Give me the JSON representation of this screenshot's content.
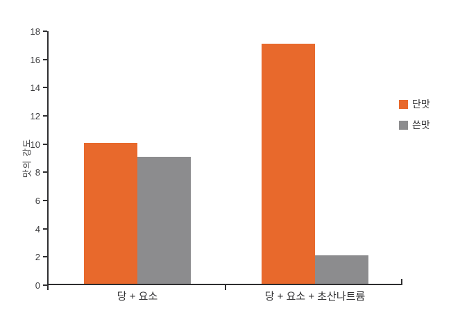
{
  "chart_data": {
    "type": "bar",
    "title": "",
    "categories": [
      "당 + 요소",
      "당 + 요소 + 초산나트륨"
    ],
    "series": [
      {
        "name": "단맛",
        "color": "#E8692C",
        "values": [
          10,
          17
        ]
      },
      {
        "name": "쓴맛",
        "color": "#8C8C8E",
        "values": [
          9,
          2
        ]
      }
    ],
    "xlabel": "",
    "ylabel": "맛의 강도",
    "ylim": [
      0,
      18
    ],
    "yticks": [
      0,
      2,
      4,
      6,
      8,
      10,
      12,
      14,
      16,
      18
    ],
    "grid": false,
    "legend_position": "right-middle"
  },
  "colors": {
    "sweet_orange": "#E8692C",
    "bitter_gray": "#8C8C8E",
    "axis": "#2E2E30",
    "text": "#3B3B3D",
    "background": "#FFFFFF"
  }
}
